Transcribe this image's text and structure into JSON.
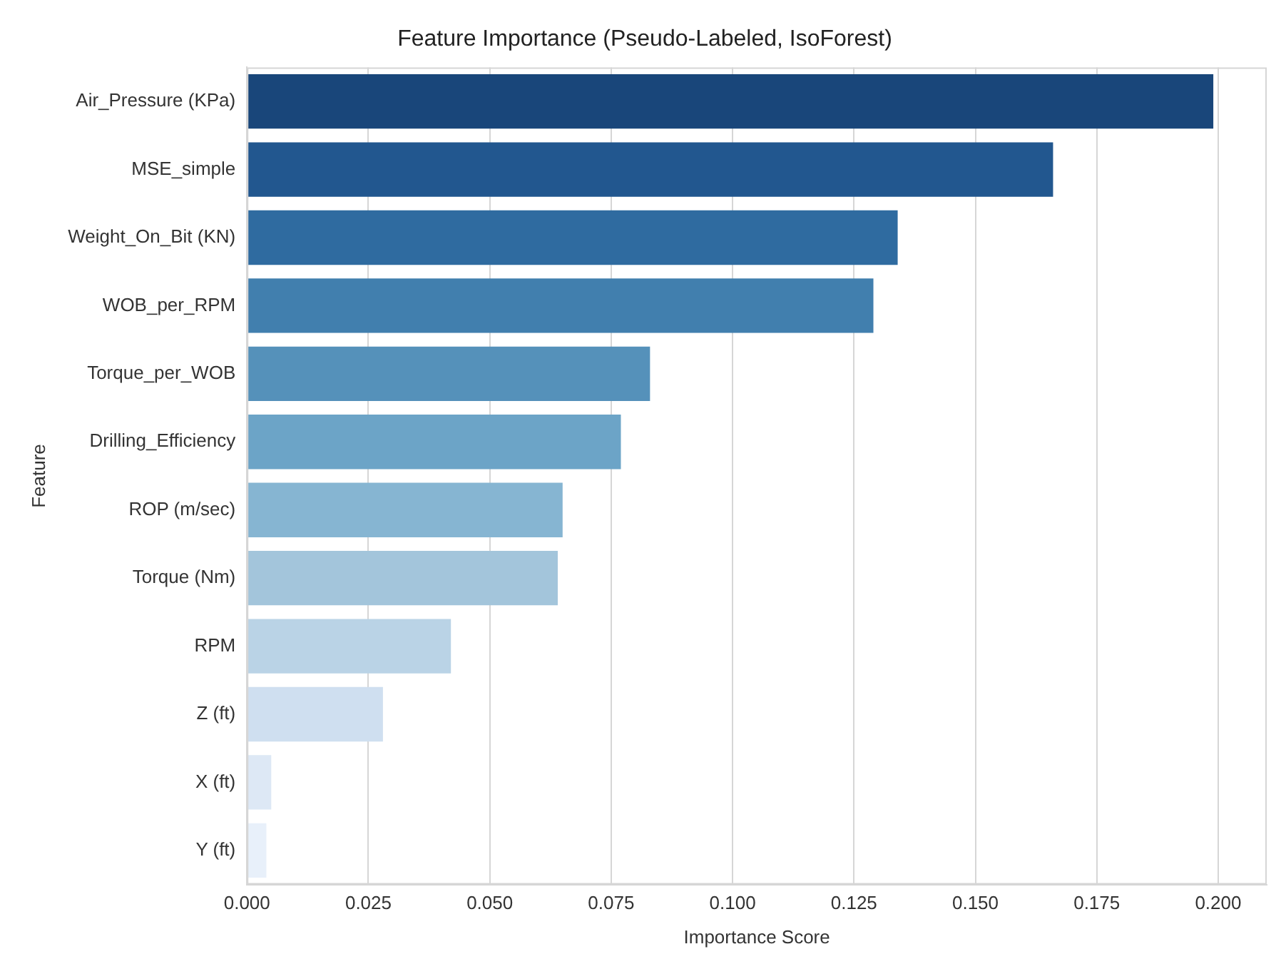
{
  "chart_data": {
    "type": "bar",
    "orientation": "horizontal",
    "title": "Feature Importance (Pseudo-Labeled, IsoForest)",
    "xlabel": "Importance Score",
    "ylabel": "Feature",
    "categories": [
      "Air_Pressure (KPa)",
      "MSE_simple",
      "Weight_On_Bit (KN)",
      "WOB_per_RPM",
      "Torque_per_WOB",
      "Drilling_Efficiency",
      "ROP (m/sec)",
      "Torque (Nm)",
      "RPM",
      "Z (ft)",
      "X (ft)",
      "Y (ft)"
    ],
    "values": [
      0.199,
      0.166,
      0.134,
      0.129,
      0.083,
      0.077,
      0.065,
      0.064,
      0.042,
      0.028,
      0.005,
      0.004
    ],
    "colors": [
      "#19467a",
      "#22578f",
      "#2f6ba0",
      "#417fae",
      "#5591ba",
      "#6ca4c7",
      "#86b5d2",
      "#a3c5db",
      "#bad3e6",
      "#cfdff0",
      "#dde8f5",
      "#e8f0fa"
    ],
    "xlim": [
      0,
      0.21
    ],
    "xticks": [
      {
        "value": 0,
        "label": "0.000"
      },
      {
        "value": 0.025,
        "label": "0.025"
      },
      {
        "value": 0.05,
        "label": "0.050"
      },
      {
        "value": 0.075,
        "label": "0.075"
      },
      {
        "value": 0.1,
        "label": "0.100"
      },
      {
        "value": 0.125,
        "label": "0.125"
      },
      {
        "value": 0.15,
        "label": "0.150"
      },
      {
        "value": 0.175,
        "label": "0.175"
      },
      {
        "value": 0.2,
        "label": "0.200"
      }
    ],
    "grid": "x",
    "legend": false
  }
}
